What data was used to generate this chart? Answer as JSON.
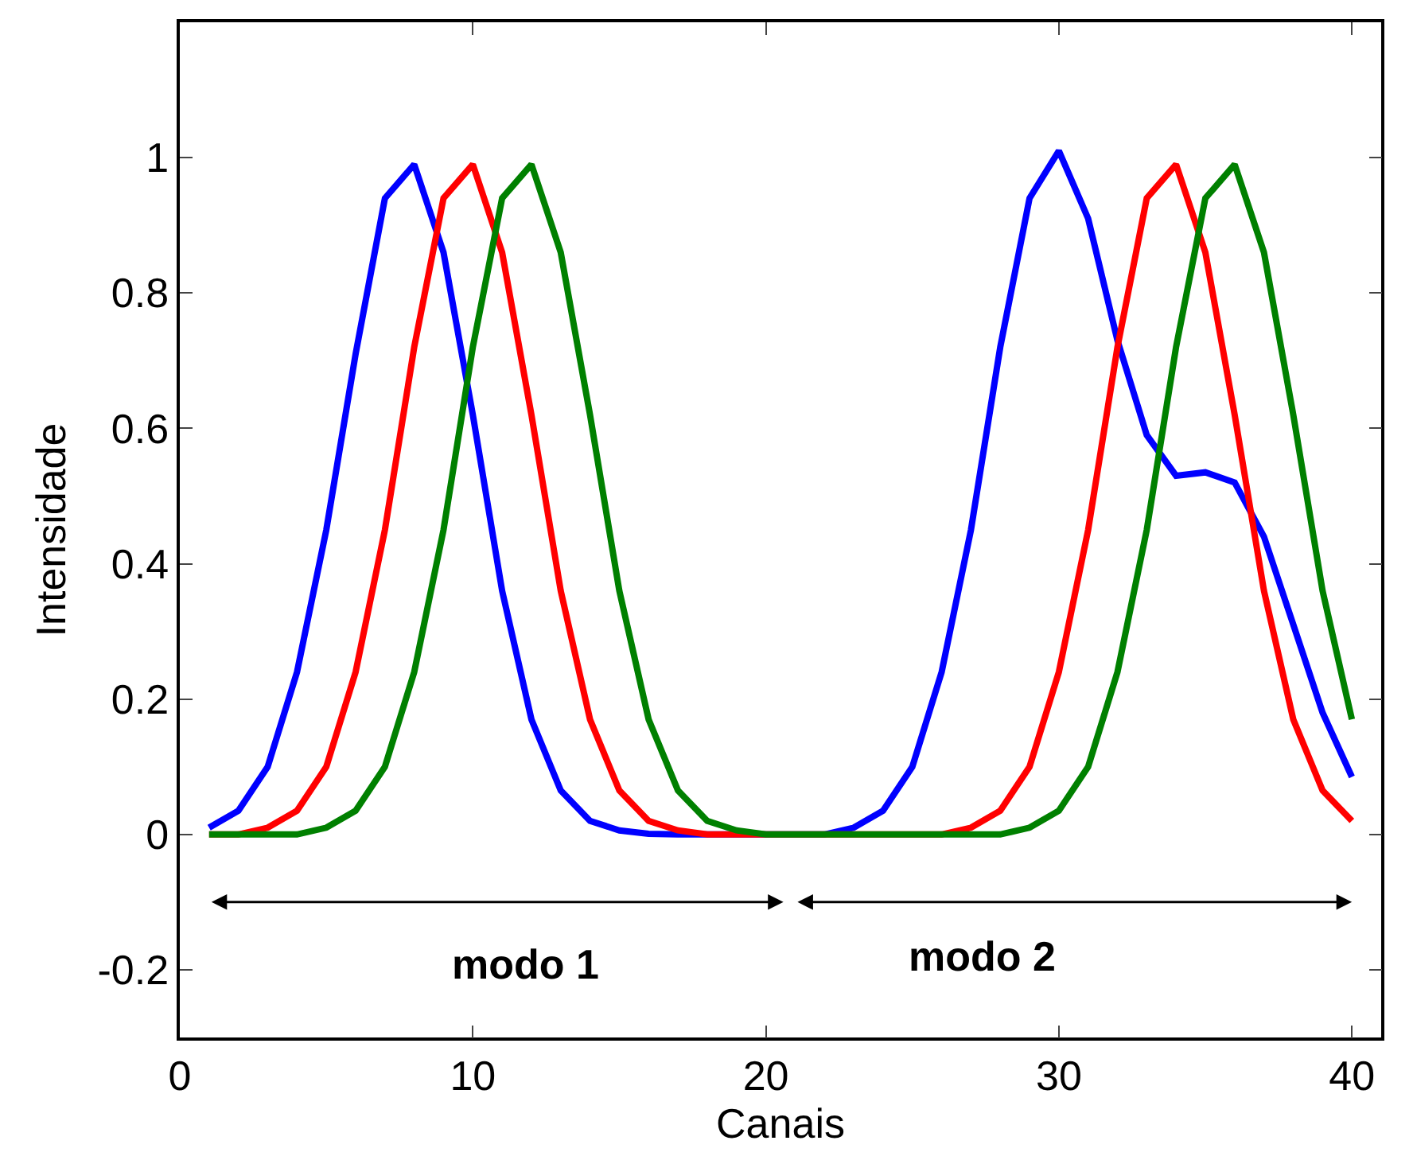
{
  "chart_data": {
    "type": "line",
    "xlabel": "Canais",
    "ylabel": "Intensidade",
    "x": [
      1,
      2,
      3,
      4,
      5,
      6,
      7,
      8,
      9,
      10,
      11,
      12,
      13,
      14,
      15,
      16,
      17,
      18,
      19,
      20,
      21,
      22,
      23,
      24,
      25,
      26,
      27,
      28,
      29,
      30,
      31,
      32,
      33,
      34,
      35,
      36,
      37,
      38,
      39,
      40
    ],
    "series": [
      {
        "color": "#0000ff",
        "values": [
          0.01,
          0.035,
          0.1,
          0.24,
          0.45,
          0.71,
          0.94,
          0.99,
          0.86,
          0.62,
          0.36,
          0.17,
          0.065,
          0.02,
          0.006,
          0.001,
          0,
          0,
          0,
          0,
          0,
          0,
          0.01,
          0.035,
          0.1,
          0.24,
          0.45,
          0.72,
          0.94,
          1.01,
          0.91,
          0.73,
          0.59,
          0.53,
          0.535,
          0.52,
          0.44,
          0.31,
          0.18,
          0.085
        ]
      },
      {
        "color": "#ff0000",
        "values": [
          0,
          0,
          0.01,
          0.035,
          0.1,
          0.24,
          0.45,
          0.72,
          0.94,
          0.99,
          0.86,
          0.62,
          0.36,
          0.17,
          0.065,
          0.02,
          0.006,
          0,
          0,
          0,
          0,
          0,
          0,
          0,
          0,
          0,
          0.01,
          0.035,
          0.1,
          0.24,
          0.45,
          0.72,
          0.94,
          0.99,
          0.86,
          0.62,
          0.36,
          0.17,
          0.065,
          0.02
        ]
      },
      {
        "color": "#008000",
        "values": [
          0,
          0,
          0,
          0,
          0.01,
          0.035,
          0.1,
          0.24,
          0.45,
          0.72,
          0.94,
          0.99,
          0.86,
          0.62,
          0.36,
          0.17,
          0.065,
          0.02,
          0.006,
          0,
          0,
          0,
          0,
          0,
          0,
          0,
          0,
          0,
          0.01,
          0.035,
          0.1,
          0.24,
          0.45,
          0.72,
          0.94,
          0.99,
          0.86,
          0.62,
          0.36,
          0.17
        ]
      }
    ],
    "xlim": [
      0,
      41
    ],
    "xticks": [
      0,
      10,
      20,
      30,
      40
    ],
    "ylim": [
      -0.3,
      1.2
    ],
    "yticks": [
      -0.2,
      0,
      0.2,
      0.4,
      0.6,
      0.8,
      1
    ],
    "grid": false,
    "marker": "none",
    "line_style": "solid",
    "annotations": [
      "modo 1",
      "modo 2"
    ]
  }
}
